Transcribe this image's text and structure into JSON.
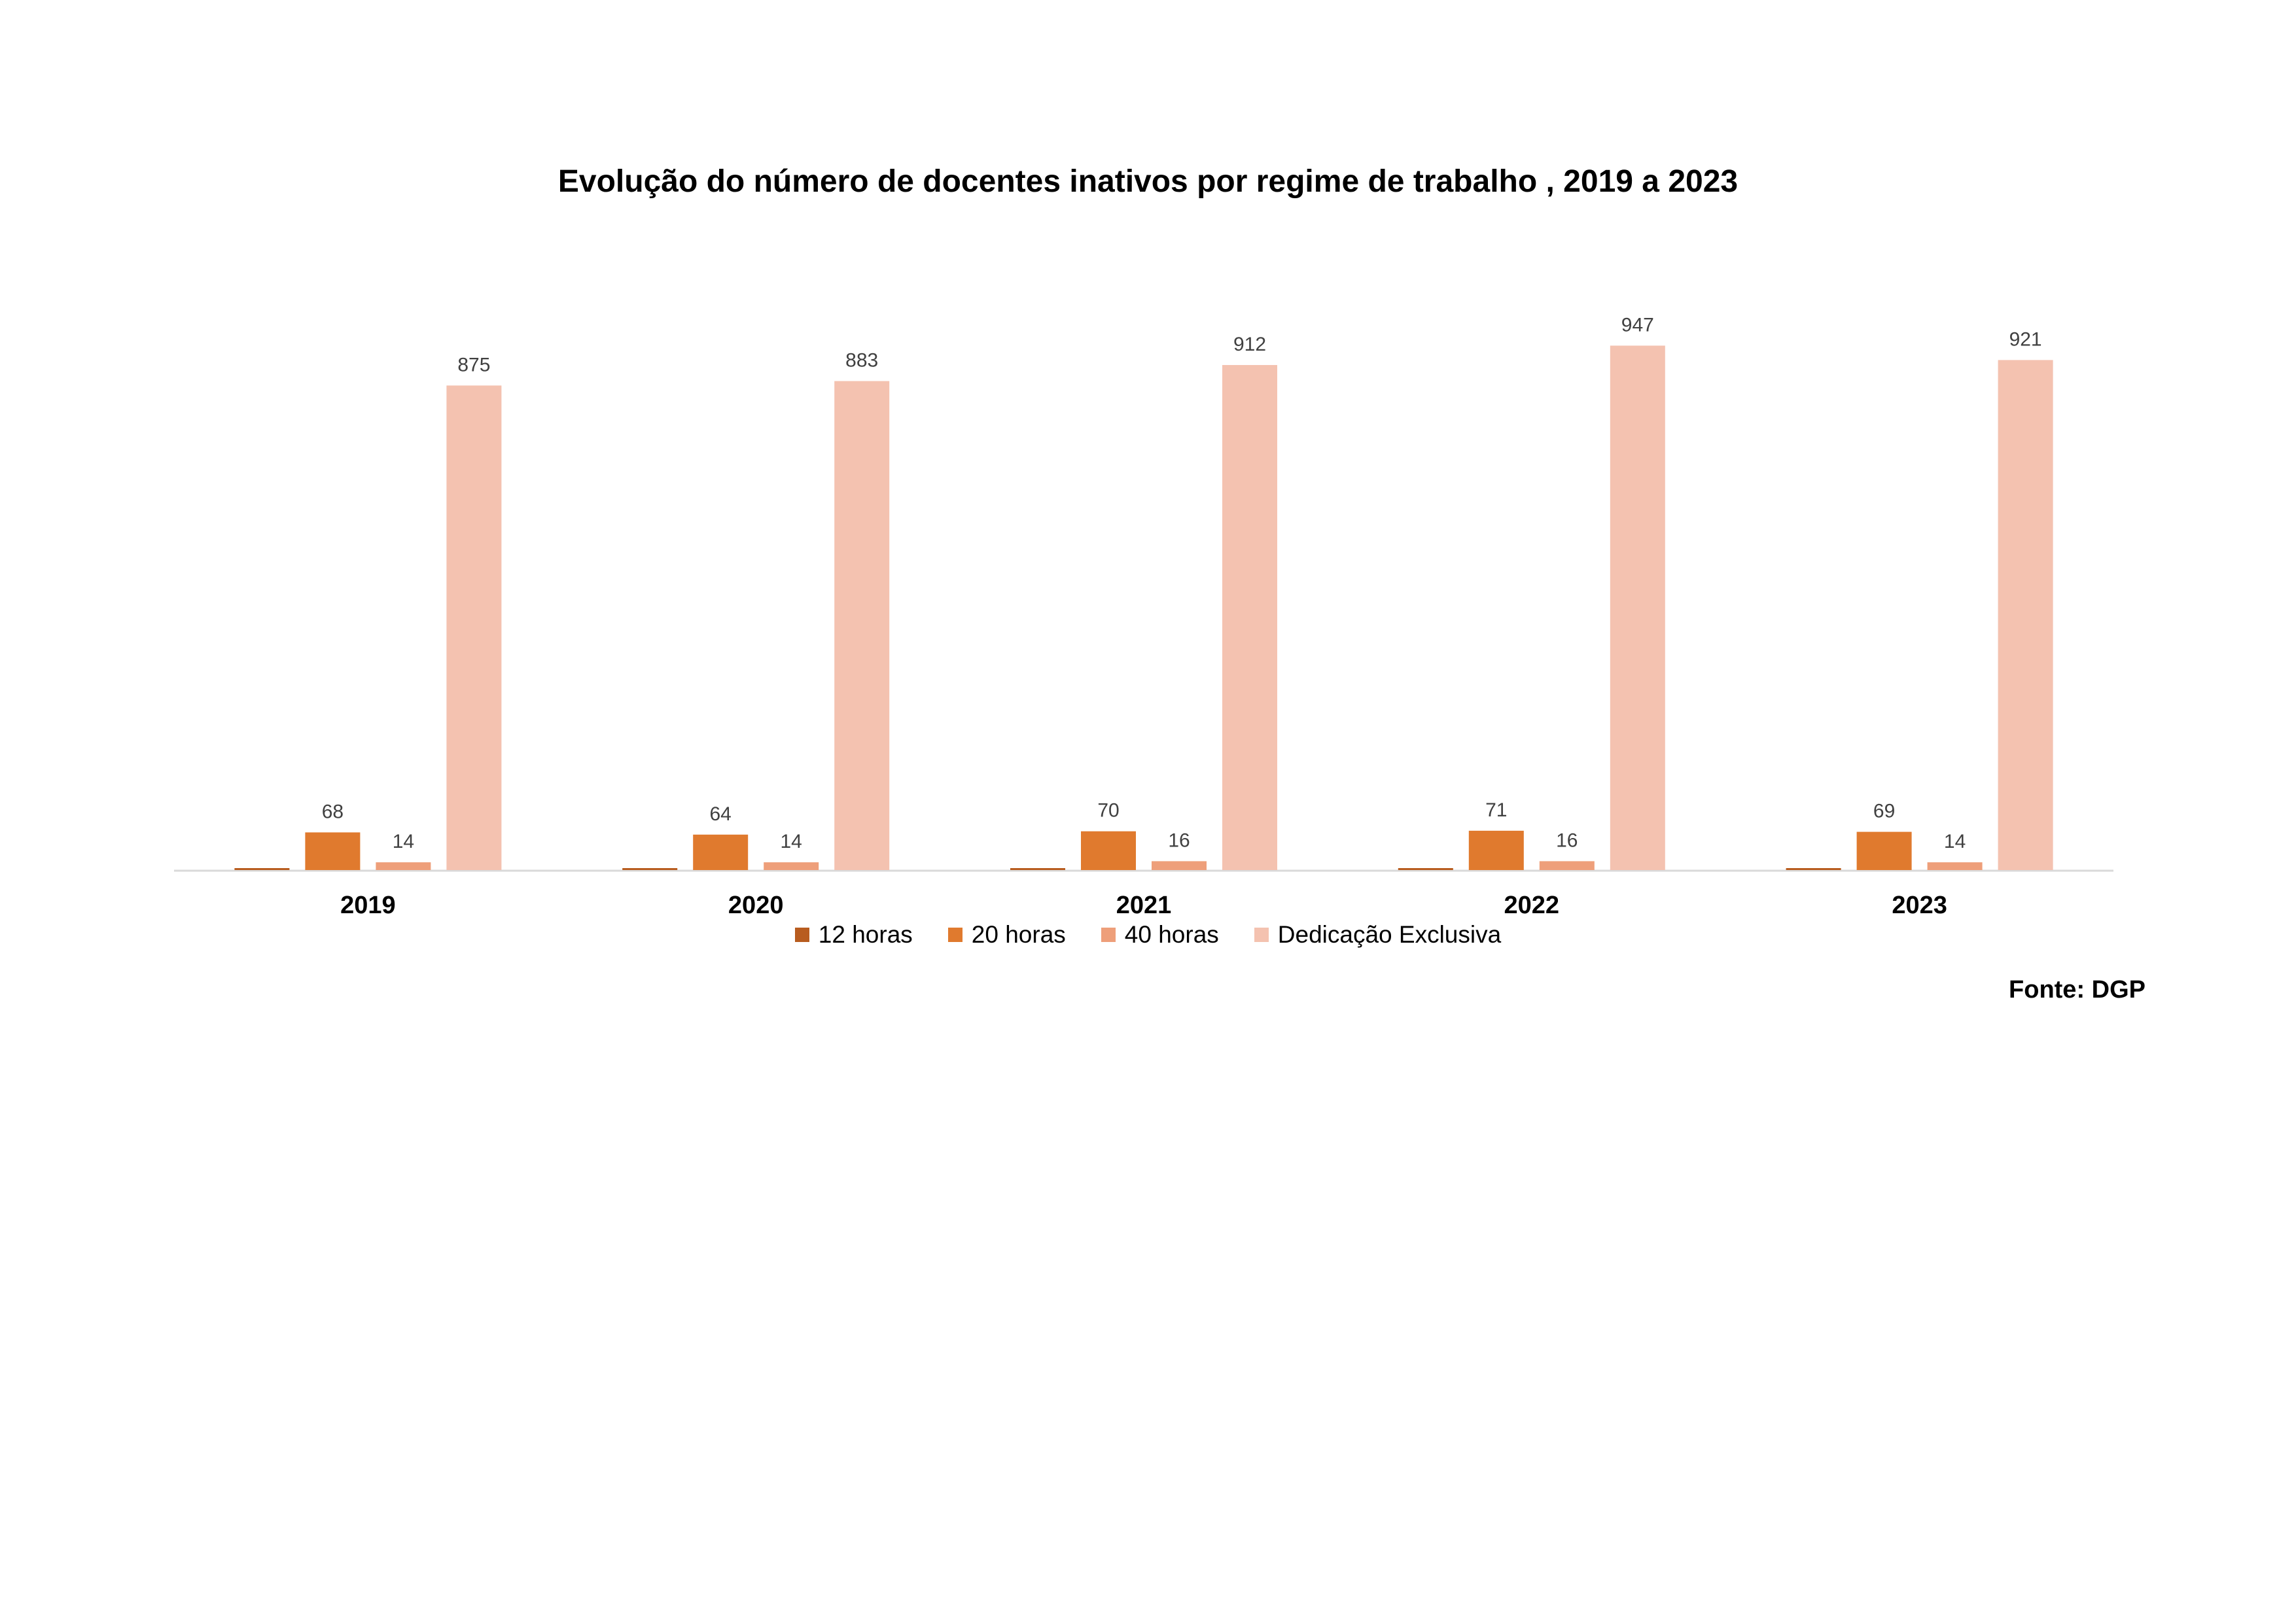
{
  "chart_data": {
    "type": "bar",
    "title": "Evolução do número de docentes inativos por regime de trabalho , 2019 a 2023",
    "categories": [
      "2019",
      "2020",
      "2021",
      "2022",
      "2023"
    ],
    "series": [
      {
        "name": "12 horas",
        "values": [
          1,
          1,
          0,
          0,
          0
        ],
        "color": "#B85C1F",
        "show_labels": false
      },
      {
        "name": "20 horas",
        "values": [
          68,
          64,
          70,
          71,
          69
        ],
        "color": "#E07A2E",
        "show_labels": true
      },
      {
        "name": "40 horas",
        "values": [
          14,
          14,
          16,
          16,
          14
        ],
        "color": "#EE9F7A",
        "show_labels": true
      },
      {
        "name": "Dedicação Exclusiva",
        "values": [
          875,
          883,
          912,
          947,
          921
        ],
        "color": "#F4C2B0",
        "show_labels": true
      }
    ],
    "ylim": [
      0,
      1000
    ],
    "xlabel": "",
    "ylabel": "",
    "grid": false,
    "legend_position": "bottom",
    "axis_color": "#D9D9D9"
  },
  "source": "Fonte: DGP"
}
